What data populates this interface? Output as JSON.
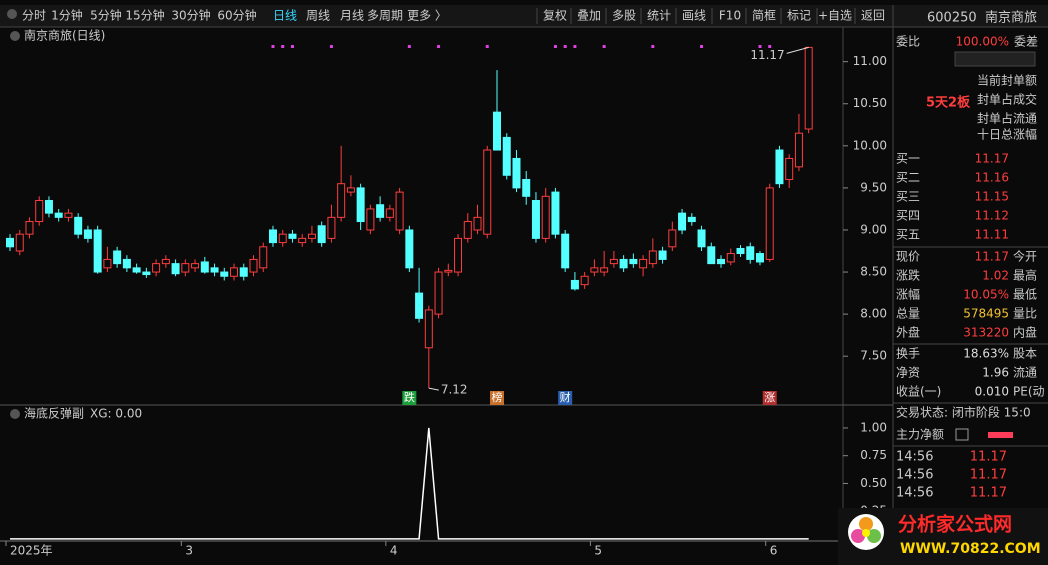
{
  "toolbar": {
    "periods": [
      "分时",
      "1分钟",
      "5分钟",
      "15分钟",
      "30分钟",
      "60分钟",
      "日线",
      "周线",
      "月线",
      "多周期",
      "更多 〉"
    ],
    "active_period": 6,
    "tools": [
      "复权",
      "叠加",
      "多股",
      "统计",
      "画线",
      "F10",
      "简框",
      "标记",
      "+自选",
      "返回"
    ]
  },
  "chart_data": {
    "type": "candlestick",
    "title": "南京商旅(日线)",
    "up_color": "#ff3d3d",
    "down_color": "#54ffff",
    "ohlc": [
      [
        8.9,
        8.95,
        8.75,
        8.8
      ],
      [
        8.75,
        9.0,
        8.7,
        8.95
      ],
      [
        8.95,
        9.15,
        8.9,
        9.1
      ],
      [
        9.1,
        9.4,
        9.05,
        9.35
      ],
      [
        9.35,
        9.4,
        9.15,
        9.2
      ],
      [
        9.2,
        9.25,
        9.1,
        9.15
      ],
      [
        9.15,
        9.25,
        9.1,
        9.2
      ],
      [
        9.15,
        9.2,
        8.9,
        8.95
      ],
      [
        9.0,
        9.05,
        8.85,
        8.9
      ],
      [
        9.0,
        9.05,
        8.48,
        8.5
      ],
      [
        8.55,
        8.8,
        8.5,
        8.65
      ],
      [
        8.75,
        8.8,
        8.55,
        8.6
      ],
      [
        8.65,
        8.7,
        8.5,
        8.55
      ],
      [
        8.55,
        8.6,
        8.48,
        8.5
      ],
      [
        8.5,
        8.55,
        8.43,
        8.47
      ],
      [
        8.5,
        8.65,
        8.45,
        8.6
      ],
      [
        8.6,
        8.7,
        8.55,
        8.65
      ],
      [
        8.6,
        8.65,
        8.45,
        8.48
      ],
      [
        8.5,
        8.65,
        8.45,
        8.6
      ],
      [
        8.55,
        8.65,
        8.5,
        8.6
      ],
      [
        8.62,
        8.68,
        8.48,
        8.5
      ],
      [
        8.55,
        8.6,
        8.45,
        8.5
      ],
      [
        8.5,
        8.55,
        8.4,
        8.45
      ],
      [
        8.45,
        8.6,
        8.4,
        8.55
      ],
      [
        8.55,
        8.6,
        8.4,
        8.45
      ],
      [
        8.5,
        8.7,
        8.45,
        8.65
      ],
      [
        8.55,
        8.85,
        8.5,
        8.8
      ],
      [
        9.0,
        9.05,
        8.8,
        8.85
      ],
      [
        8.85,
        9.0,
        8.8,
        8.95
      ],
      [
        8.95,
        9.0,
        8.85,
        8.9
      ],
      [
        8.85,
        8.95,
        8.8,
        8.9
      ],
      [
        8.9,
        9.05,
        8.85,
        8.95
      ],
      [
        9.05,
        9.1,
        8.8,
        8.85
      ],
      [
        8.9,
        9.3,
        8.85,
        9.15
      ],
      [
        9.15,
        10.0,
        9.1,
        9.55
      ],
      [
        9.45,
        9.65,
        9.4,
        9.5
      ],
      [
        9.5,
        9.55,
        9.0,
        9.1
      ],
      [
        9.0,
        9.3,
        8.95,
        9.25
      ],
      [
        9.3,
        9.4,
        9.1,
        9.15
      ],
      [
        9.15,
        9.3,
        9.1,
        9.25
      ],
      [
        9.0,
        9.5,
        8.95,
        9.45
      ],
      [
        9.0,
        9.05,
        8.5,
        8.55
      ],
      [
        8.25,
        8.55,
        7.9,
        7.95
      ],
      [
        7.6,
        8.1,
        7.12,
        8.05
      ],
      [
        8.0,
        8.55,
        7.95,
        8.5
      ],
      [
        8.5,
        8.6,
        8.45,
        8.52
      ],
      [
        8.5,
        8.95,
        8.45,
        8.9
      ],
      [
        8.9,
        9.2,
        8.85,
        9.1
      ],
      [
        9.0,
        9.3,
        8.95,
        9.15
      ],
      [
        8.95,
        10.0,
        8.9,
        9.95
      ],
      [
        10.4,
        10.9,
        9.95,
        9.95
      ],
      [
        10.1,
        10.15,
        9.6,
        9.65
      ],
      [
        9.85,
        9.95,
        9.45,
        9.5
      ],
      [
        9.6,
        9.7,
        9.3,
        9.4
      ],
      [
        9.35,
        9.45,
        8.85,
        8.9
      ],
      [
        8.9,
        9.5,
        8.85,
        9.4
      ],
      [
        9.45,
        9.5,
        8.9,
        8.95
      ],
      [
        8.95,
        9.0,
        8.5,
        8.55
      ],
      [
        8.4,
        8.5,
        8.28,
        8.3
      ],
      [
        8.35,
        8.5,
        8.3,
        8.45
      ],
      [
        8.5,
        8.65,
        8.45,
        8.55
      ],
      [
        8.5,
        8.75,
        8.45,
        8.55
      ],
      [
        8.6,
        8.75,
        8.55,
        8.65
      ],
      [
        8.65,
        8.7,
        8.5,
        8.55
      ],
      [
        8.65,
        8.72,
        8.55,
        8.6
      ],
      [
        8.55,
        8.7,
        8.45,
        8.65
      ],
      [
        8.6,
        8.9,
        8.55,
        8.75
      ],
      [
        8.75,
        8.8,
        8.6,
        8.65
      ],
      [
        8.8,
        9.1,
        8.75,
        9.0
      ],
      [
        9.2,
        9.25,
        8.95,
        9.0
      ],
      [
        9.15,
        9.2,
        9.05,
        9.1
      ],
      [
        9.0,
        9.05,
        8.75,
        8.8
      ],
      [
        8.8,
        8.85,
        8.6,
        8.6
      ],
      [
        8.65,
        8.7,
        8.55,
        8.6
      ],
      [
        8.62,
        8.78,
        8.58,
        8.72
      ],
      [
        8.78,
        8.82,
        8.68,
        8.72
      ],
      [
        8.8,
        8.85,
        8.6,
        8.65
      ],
      [
        8.72,
        8.75,
        8.58,
        8.62
      ],
      [
        8.65,
        9.55,
        8.62,
        9.5
      ],
      [
        9.95,
        10.0,
        9.5,
        9.55
      ],
      [
        9.6,
        9.9,
        9.5,
        9.85
      ],
      [
        9.75,
        10.38,
        9.7,
        10.15
      ],
      [
        10.2,
        11.17,
        10.15,
        11.17
      ]
    ],
    "ylim": [
      6.92,
      11.21
    ],
    "yticks": [
      {
        "value": 11,
        "label": "11.00"
      },
      {
        "value": 10.5,
        "label": "10.50"
      },
      {
        "value": 10,
        "label": "10.00"
      },
      {
        "value": 9.5,
        "label": "9.50"
      },
      {
        "value": 9,
        "label": "9.00"
      },
      {
        "value": 8.5,
        "label": "8.50"
      },
      {
        "value": 8,
        "label": "8.00"
      },
      {
        "value": 7.5,
        "label": "7.50"
      }
    ],
    "xlabels": [
      {
        "index": 0,
        "label": "2025年"
      },
      {
        "index": 18,
        "label": "3"
      },
      {
        "index": 39,
        "label": "4"
      },
      {
        "index": 60,
        "label": "5"
      },
      {
        "index": 78,
        "label": "6"
      }
    ],
    "markers": [
      {
        "index": 41,
        "label": "跌",
        "color": "#1e9e3a"
      },
      {
        "index": 50,
        "label": "榜",
        "color": "#c8702a"
      },
      {
        "index": 57,
        "label": "财",
        "color": "#2a5fb0"
      },
      {
        "index": 78,
        "label": "涨",
        "color": "#b03030"
      }
    ],
    "signal_dots": [
      27,
      28,
      29,
      33,
      41,
      44,
      49,
      56,
      57,
      58,
      61,
      66,
      71,
      77,
      78
    ],
    "dot_color": "#e040e0",
    "annotations": [
      {
        "index": 82,
        "value": 11.17,
        "label": "11.17"
      },
      {
        "index": 43,
        "value": 7.12,
        "label": "7.12"
      }
    ],
    "indicator": {
      "type": "line",
      "title": "海底反弹副",
      "legend": "XG: 0.00",
      "color": "#ffffff",
      "values": [
        0,
        0,
        0,
        0,
        0,
        0,
        0,
        0,
        0,
        0,
        0,
        0,
        0,
        0,
        0,
        0,
        0,
        0,
        0,
        0,
        0,
        0,
        0,
        0,
        0,
        0,
        0,
        0,
        0,
        0,
        0,
        0,
        0,
        0,
        0,
        0,
        0,
        0,
        0,
        0,
        0,
        0,
        0,
        1,
        0,
        0,
        0,
        0,
        0,
        0,
        0,
        0,
        0,
        0,
        0,
        0,
        0,
        0,
        0,
        0,
        0,
        0,
        0,
        0,
        0,
        0,
        0,
        0,
        0,
        0,
        0,
        0,
        0,
        0,
        0,
        0,
        0,
        0,
        0,
        0,
        0,
        0,
        0
      ],
      "ylim": [
        -0.01,
        1.18
      ],
      "yticks": [
        {
          "value": 1,
          "label": "1.00"
        },
        {
          "value": 0.75,
          "label": "0.75"
        },
        {
          "value": 0.5,
          "label": "0.50"
        },
        {
          "value": 0.25,
          "label": "0.25"
        }
      ]
    }
  },
  "quote": {
    "code": "600250",
    "name": "南京商旅",
    "weibi": [
      "委比",
      "100.00%",
      "委差"
    ],
    "tag": "5天2板",
    "seal": [
      "当前封单额",
      "封单占成交",
      "封单占流通",
      "十日总涨幅"
    ],
    "bids": [
      [
        "买一",
        "11.17"
      ],
      [
        "买二",
        "11.16"
      ],
      [
        "买三",
        "11.15"
      ],
      [
        "买四",
        "11.12"
      ],
      [
        "买五",
        "11.11"
      ]
    ],
    "stats": [
      {
        "label": "现价",
        "value": "11.17",
        "right": "今开",
        "color": "#ff3d3d"
      },
      {
        "label": "涨跌",
        "value": "1.02",
        "right": "最高",
        "color": "#ff3d3d"
      },
      {
        "label": "涨幅",
        "value": "10.05%",
        "right": "最低",
        "color": "#ff3d3d"
      },
      {
        "label": "总量",
        "value": "578495",
        "right": "量比",
        "color": "#f2c230"
      },
      {
        "label": "外盘",
        "value": "313220",
        "right": "内盘",
        "color": "#ff3d3d"
      },
      {
        "label": "换手",
        "value": "18.63%",
        "right": "股本",
        "color": "#dddddd"
      },
      {
        "label": "净资",
        "value": "1.96",
        "right": "流通",
        "color": "#dddddd"
      },
      {
        "label": "收益(一)",
        "value": "0.010",
        "right": "PE(动",
        "color": "#dddddd"
      }
    ],
    "status": "交易状态: 闭市阶段 15:0",
    "flow_title": "主力净额",
    "ticks": [
      [
        "14:56",
        "11.17"
      ],
      [
        "14:56",
        "11.17"
      ],
      [
        "14:56",
        "11.17"
      ]
    ]
  },
  "watermark": {
    "title": "分析家公式网",
    "url": "WWW.70822.COM"
  }
}
